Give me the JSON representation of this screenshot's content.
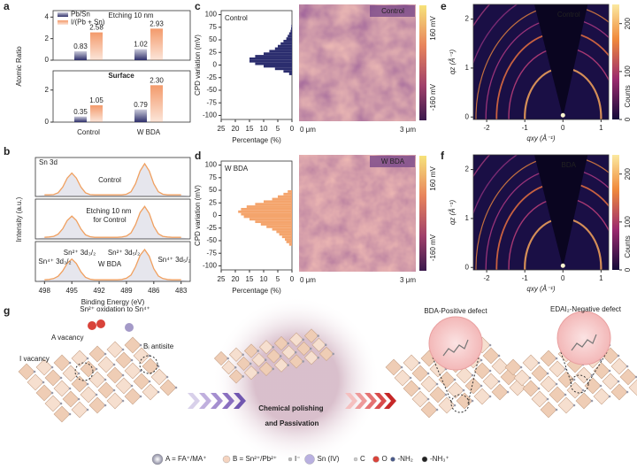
{
  "panel_labels": [
    "a",
    "b",
    "c",
    "d",
    "e",
    "f",
    "g"
  ],
  "chart_data": [
    {
      "type": "bar",
      "ylabel": "Atomic Ratio",
      "categories": [
        "Control",
        "W BDA"
      ],
      "subplots": [
        {
          "annotation": "Etching 10 nm",
          "ylim": [
            0,
            4.6
          ],
          "yticks": [
            0,
            2,
            4
          ],
          "series": [
            {
              "name": "Pb/Sn",
              "color": "#2e2f6b",
              "values": [
                0.83,
                1.02
              ]
            },
            {
              "name": "I/(Pb + Sn)",
              "color": "#f39a6b",
              "values": [
                2.58,
                2.93
              ]
            }
          ]
        },
        {
          "annotation": "Surface",
          "ylim": [
            0,
            3.2
          ],
          "yticks": [
            0,
            2
          ],
          "series": [
            {
              "color": "#2e2f6b",
              "values": [
                0.35,
                0.79
              ]
            },
            {
              "color": "#f39a6b",
              "values": [
                1.05,
                2.3
              ],
              "value_labels": [
                "1.05",
                "2.30"
              ]
            }
          ]
        }
      ]
    },
    {
      "type": "line",
      "annotation": "Sn 3d",
      "xlabel": "Binding Energy (eV)",
      "ylabel": "Intensity (a.u.)",
      "xlim": [
        499,
        482
      ],
      "xticks": [
        498,
        495,
        492,
        489,
        486,
        483
      ],
      "ylim": [
        0,
        1.25
      ],
      "x": [
        498,
        497.5,
        497,
        496.5,
        496,
        495.5,
        495,
        494.5,
        494,
        493.5,
        493,
        492.5,
        492,
        491.5,
        491,
        490.5,
        490,
        489.5,
        489,
        488.5,
        488,
        487.5,
        487,
        486.5,
        486,
        485.5,
        485,
        484.5,
        484,
        483.5,
        483
      ],
      "series": [
        {
          "name": "Control",
          "color": "#f0a060",
          "values": [
            0.05,
            0.05,
            0.06,
            0.12,
            0.3,
            0.59,
            0.75,
            0.59,
            0.3,
            0.12,
            0.06,
            0.05,
            0.05,
            0.05,
            0.05,
            0.05,
            0.05,
            0.05,
            0.07,
            0.15,
            0.41,
            0.82,
            1.05,
            0.82,
            0.41,
            0.15,
            0.07,
            0.05,
            0.05,
            0.05,
            0.05
          ]
        },
        {
          "name": "Etching 10 nm for Control",
          "color": "#f0a060",
          "values": [
            0.05,
            0.06,
            0.08,
            0.15,
            0.32,
            0.58,
            0.72,
            0.58,
            0.31,
            0.13,
            0.07,
            0.05,
            0.05,
            0.05,
            0.05,
            0.05,
            0.05,
            0.06,
            0.09,
            0.19,
            0.45,
            0.83,
            1.02,
            0.8,
            0.4,
            0.16,
            0.08,
            0.06,
            0.05,
            0.05,
            0.05
          ]
        },
        {
          "name": "W BDA",
          "color": "#f0a060",
          "values": [
            0.05,
            0.06,
            0.09,
            0.16,
            0.33,
            0.57,
            0.7,
            0.56,
            0.3,
            0.13,
            0.07,
            0.05,
            0.05,
            0.05,
            0.05,
            0.05,
            0.05,
            0.06,
            0.1,
            0.2,
            0.46,
            0.82,
            1.0,
            0.79,
            0.4,
            0.17,
            0.09,
            0.06,
            0.05,
            0.05,
            0.05
          ]
        }
      ],
      "peak_labels": [
        "Sn⁴⁺ 3d₃/₂",
        "Sn²⁺ 3d₃/₂",
        "Sn²⁺ 3d₅/₂",
        "Sn⁴⁺ 3d₅/₂"
      ]
    },
    {
      "type": "histogram",
      "annotation": "Control",
      "xlabel": "Percentage (%)",
      "ylabel": "CPD variation (mV)",
      "color": "#2b2d6e",
      "xlim": [
        25,
        0
      ],
      "xticks": [
        25,
        20,
        15,
        10,
        5,
        0
      ],
      "ylim": [
        -108,
        108
      ],
      "yticks": [
        100,
        75,
        50,
        25,
        0,
        -25,
        -50,
        -75,
        -100
      ],
      "bins": [
        -20,
        -15,
        -10,
        -5,
        0,
        5,
        10,
        15,
        20,
        25,
        30,
        35,
        40,
        45,
        50,
        55,
        60,
        65,
        70,
        75,
        80
      ],
      "counts": [
        1,
        3,
        6,
        10,
        13,
        15,
        15,
        13,
        10,
        8,
        6,
        5,
        4,
        3,
        2,
        1.5,
        1,
        0.5,
        0.3,
        0.2
      ]
    },
    {
      "type": "histogram",
      "annotation": "W BDA",
      "xlabel": "Percentage (%)",
      "ylabel": "CPD variation (mV)",
      "color": "#f4a46c",
      "xlim": [
        25,
        0
      ],
      "xticks": [
        25,
        20,
        15,
        10,
        5,
        0
      ],
      "ylim": [
        -108,
        108
      ],
      "yticks": [
        100,
        75,
        50,
        25,
        0,
        -25,
        -50,
        -75,
        -100
      ],
      "bins": [
        -60,
        -55,
        -50,
        -45,
        -40,
        -35,
        -30,
        -25,
        -20,
        -15,
        -10,
        -5,
        0,
        5,
        10,
        15,
        20,
        25,
        30,
        35,
        40,
        45,
        50
      ],
      "counts": [
        1,
        2,
        2.5,
        3.5,
        4.5,
        5.5,
        7,
        9,
        11,
        13,
        15,
        17,
        18,
        19,
        18,
        16,
        13,
        10,
        7,
        5,
        3,
        1.5
      ]
    }
  ],
  "kpfm": {
    "maps": [
      "Control",
      "W BDA"
    ],
    "scale_start": "0 μm",
    "scale_end": "3 μm",
    "colorbar_max": "160 mV",
    "colorbar_min": "-160 mV"
  },
  "giwaxs": {
    "maps": [
      "Control",
      "BDA"
    ],
    "xlabel": "qxy (Å⁻¹)",
    "ylabel": "qz (Å⁻¹)",
    "xlim": [
      -2.35,
      1.2
    ],
    "xticks": [
      -2,
      -1,
      0,
      1
    ],
    "ylim": [
      -0.05,
      2.3
    ],
    "yticks": [
      0,
      1,
      2
    ],
    "colorbar_label": "Counts",
    "colorbar_lim": [
      0,
      240
    ],
    "colorbar_ticks": [
      0,
      100,
      200
    ]
  },
  "schematic": {
    "oxidation": "Sn²⁺ oxidation to Sn⁴⁺",
    "a_vacancy": "A vacancy",
    "antisite": "Bᵢ antisite",
    "i_vacancy": "I vacancy",
    "process": "Chemical polishing and Passivation",
    "positive": "BDA-Positive defect",
    "negative": "EDAI₂-Negative defect",
    "legend": [
      "A = FA⁺/MA⁺",
      "B = Sn²⁺/Pb²⁺",
      "I⁻",
      "Sn (IV)",
      "C",
      "O",
      "-NH₂",
      "-NH₃⁺"
    ]
  }
}
